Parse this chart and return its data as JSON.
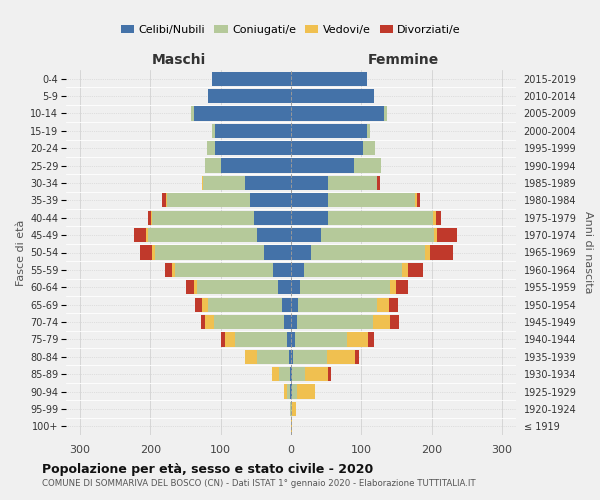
{
  "age_groups": [
    "100+",
    "95-99",
    "90-94",
    "85-89",
    "80-84",
    "75-79",
    "70-74",
    "65-69",
    "60-64",
    "55-59",
    "50-54",
    "45-49",
    "40-44",
    "35-39",
    "30-34",
    "25-29",
    "20-24",
    "15-19",
    "10-14",
    "5-9",
    "0-4"
  ],
  "birth_years": [
    "≤ 1919",
    "1920-1924",
    "1925-1929",
    "1930-1934",
    "1935-1939",
    "1940-1944",
    "1945-1949",
    "1950-1954",
    "1955-1959",
    "1960-1964",
    "1965-1969",
    "1970-1974",
    "1975-1979",
    "1980-1984",
    "1985-1989",
    "1990-1994",
    "1995-1999",
    "2000-2004",
    "2005-2009",
    "2010-2014",
    "2015-2019"
  ],
  "maschi": {
    "celibi": [
      0,
      0,
      1,
      2,
      3,
      5,
      10,
      13,
      18,
      25,
      38,
      48,
      52,
      58,
      65,
      100,
      108,
      108,
      138,
      118,
      112
    ],
    "coniugati": [
      0,
      1,
      5,
      15,
      45,
      75,
      100,
      105,
      115,
      140,
      155,
      155,
      145,
      118,
      60,
      22,
      12,
      4,
      4,
      0,
      0
    ],
    "vedovi": [
      0,
      0,
      4,
      10,
      18,
      14,
      13,
      8,
      5,
      4,
      4,
      3,
      2,
      2,
      1,
      0,
      0,
      0,
      0,
      0,
      0
    ],
    "divorziati": [
      0,
      0,
      0,
      0,
      0,
      5,
      5,
      10,
      12,
      10,
      18,
      18,
      5,
      5,
      0,
      0,
      0,
      0,
      0,
      0,
      0
    ]
  },
  "femmine": {
    "nubili": [
      0,
      0,
      1,
      2,
      3,
      5,
      8,
      10,
      13,
      18,
      28,
      42,
      52,
      52,
      52,
      90,
      102,
      108,
      132,
      118,
      108
    ],
    "coniugate": [
      0,
      2,
      8,
      18,
      48,
      75,
      108,
      112,
      128,
      140,
      162,
      162,
      150,
      125,
      70,
      38,
      18,
      4,
      4,
      0,
      0
    ],
    "vedove": [
      2,
      5,
      25,
      33,
      40,
      30,
      25,
      18,
      8,
      8,
      8,
      4,
      4,
      2,
      1,
      0,
      0,
      0,
      0,
      0,
      0
    ],
    "divorziate": [
      0,
      0,
      0,
      4,
      5,
      8,
      12,
      12,
      18,
      22,
      32,
      28,
      8,
      5,
      4,
      0,
      0,
      0,
      0,
      0,
      0
    ]
  },
  "colors": {
    "celibi": "#4472a8",
    "coniugati": "#b5c99a",
    "vedovi": "#f0c050",
    "divorziati": "#c0392b"
  },
  "xlim": 320,
  "title": "Popolazione per età, sesso e stato civile - 2020",
  "subtitle": "COMUNE DI SOMMARIVA DEL BOSCO (CN) - Dati ISTAT 1° gennaio 2020 - Elaborazione TUTTITALIA.IT",
  "ylabel_left": "Fasce di età",
  "ylabel_right": "Anni di nascita",
  "label_maschi": "Maschi",
  "label_femmine": "Femmine",
  "legend_labels": [
    "Celibi/Nubili",
    "Coniugati/e",
    "Vedovi/e",
    "Divorziati/e"
  ],
  "bg_color": "#f0f0f0"
}
